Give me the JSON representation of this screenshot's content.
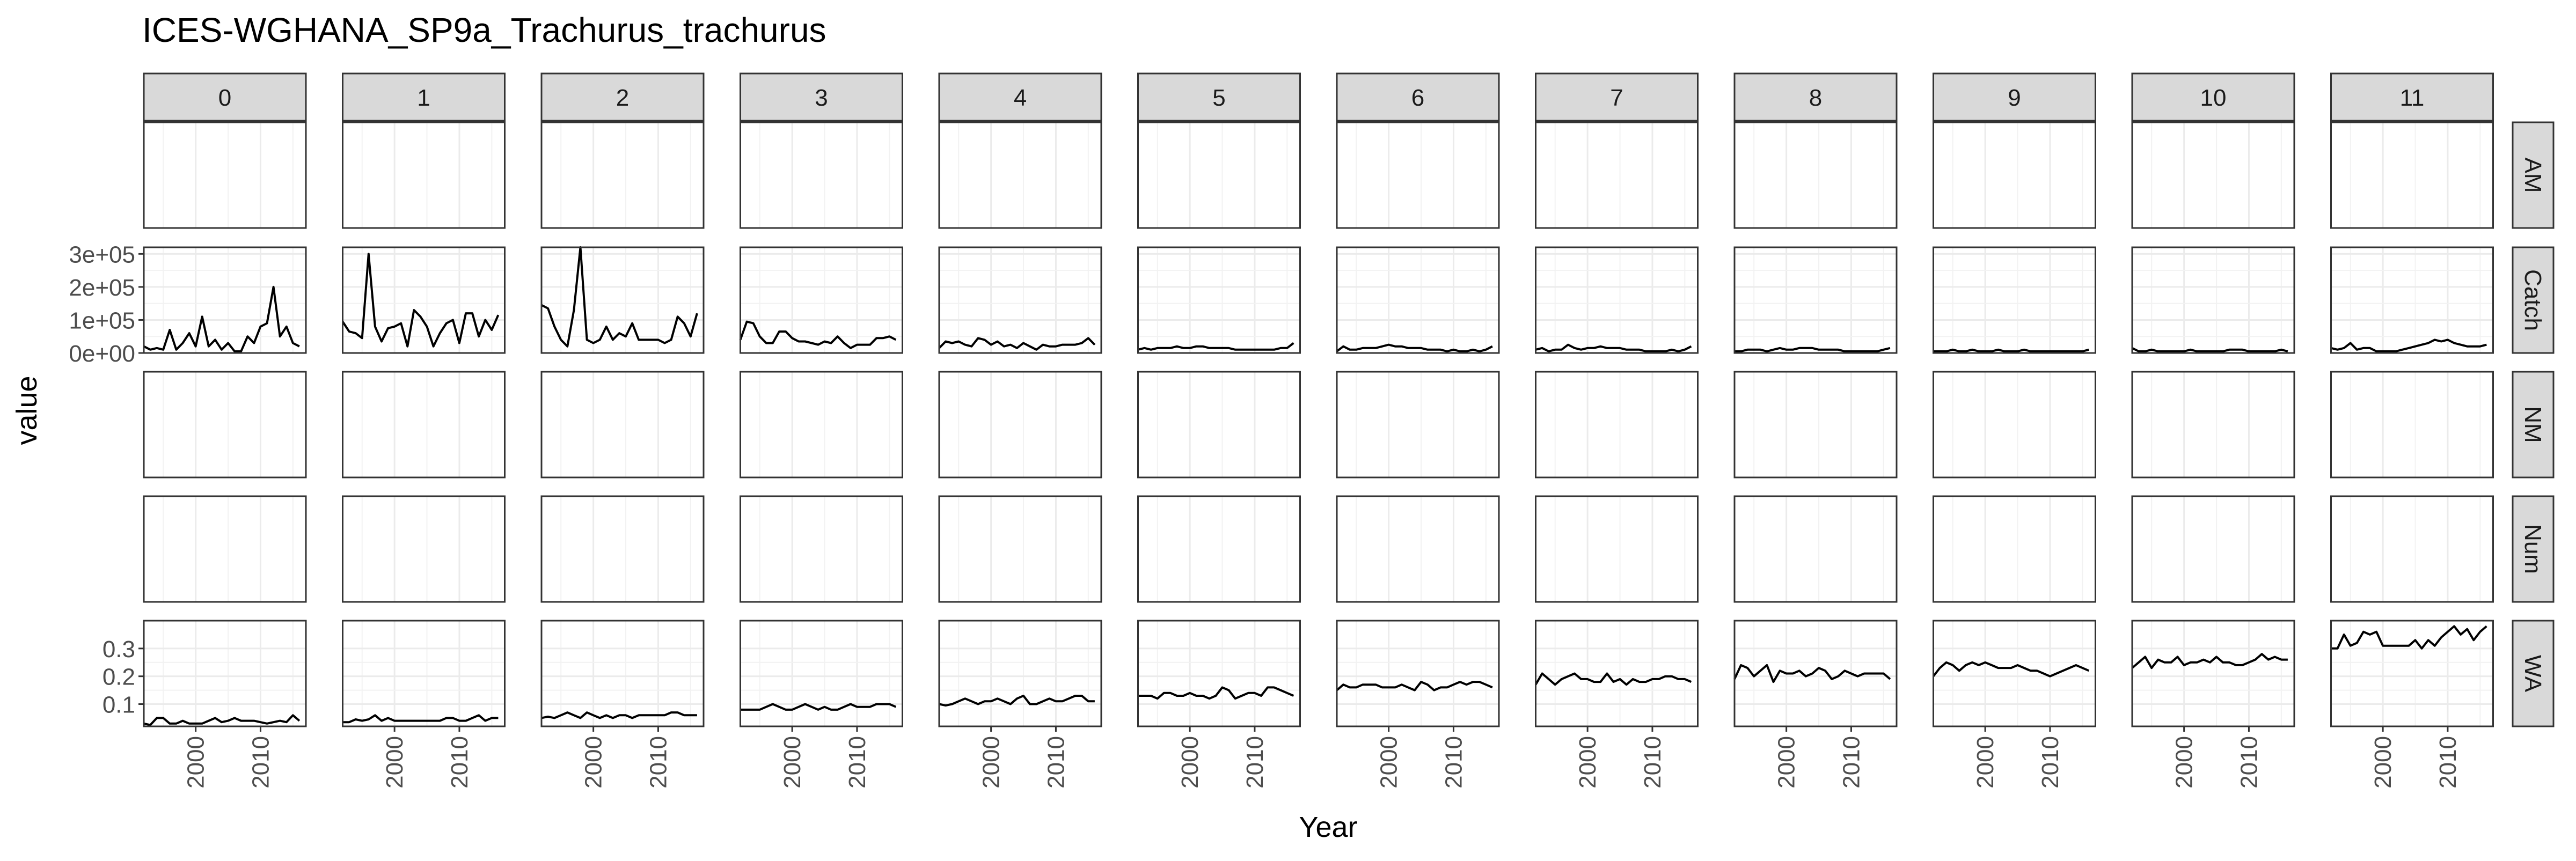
{
  "chart_data": {
    "type": "line",
    "title": "ICES-WGHANA_SP9a_Trachurus_trachurus",
    "xlabel": "Year",
    "ylabel": "value",
    "column_facets": [
      "0",
      "1",
      "2",
      "3",
      "4",
      "5",
      "6",
      "7",
      "8",
      "9",
      "10",
      "11"
    ],
    "row_facets": [
      "AM",
      "Catch",
      "NM",
      "Num",
      "WA"
    ],
    "x_ticks": [
      "2000",
      "2010"
    ],
    "xlim": [
      1992,
      2017
    ],
    "y_scales": {
      "Catch": {
        "ylim": [
          0,
          320000
        ],
        "ticks": [
          0,
          100000,
          200000,
          300000
        ],
        "tick_labels": [
          "0e+00",
          "1e+05",
          "2e+05",
          "3e+05"
        ]
      },
      "WA": {
        "ylim": [
          0.02,
          0.4
        ],
        "ticks": [
          0.1,
          0.2,
          0.3
        ],
        "tick_labels": [
          "0.1",
          "0.2",
          "0.3"
        ]
      }
    },
    "grid": true,
    "x": [
      1992,
      1993,
      1994,
      1995,
      1996,
      1997,
      1998,
      1999,
      2000,
      2001,
      2002,
      2003,
      2004,
      2005,
      2006,
      2007,
      2008,
      2009,
      2010,
      2011,
      2012,
      2013,
      2014,
      2015,
      2016
    ],
    "series": {
      "Catch": [
        [
          20000,
          10000,
          15000,
          10000,
          70000,
          10000,
          30000,
          60000,
          20000,
          110000,
          20000,
          40000,
          10000,
          30000,
          5000,
          5000,
          50000,
          30000,
          80000,
          90000,
          200000,
          50000,
          80000,
          30000,
          20000
        ],
        [
          95000,
          65000,
          60000,
          45000,
          300000,
          80000,
          35000,
          75000,
          80000,
          90000,
          20000,
          130000,
          110000,
          80000,
          20000,
          60000,
          90000,
          100000,
          30000,
          120000,
          120000,
          50000,
          100000,
          70000,
          115000
        ],
        [
          145000,
          135000,
          80000,
          40000,
          20000,
          130000,
          320000,
          40000,
          30000,
          40000,
          80000,
          40000,
          60000,
          50000,
          90000,
          40000,
          40000,
          40000,
          40000,
          30000,
          40000,
          110000,
          90000,
          50000,
          120000
        ],
        [
          40000,
          95000,
          90000,
          50000,
          30000,
          30000,
          65000,
          65000,
          45000,
          35000,
          35000,
          30000,
          25000,
          35000,
          30000,
          50000,
          30000,
          15000,
          25000,
          25000,
          25000,
          45000,
          45000,
          50000,
          40000
        ],
        [
          15000,
          35000,
          30000,
          35000,
          25000,
          20000,
          45000,
          40000,
          25000,
          35000,
          20000,
          25000,
          15000,
          30000,
          20000,
          10000,
          25000,
          20000,
          20000,
          25000,
          25000,
          25000,
          30000,
          45000,
          25000
        ],
        [
          10000,
          15000,
          10000,
          15000,
          15000,
          15000,
          20000,
          15000,
          15000,
          20000,
          20000,
          15000,
          15000,
          15000,
          15000,
          10000,
          10000,
          10000,
          10000,
          10000,
          10000,
          10000,
          15000,
          15000,
          30000
        ],
        [
          5000,
          20000,
          10000,
          10000,
          15000,
          15000,
          15000,
          20000,
          25000,
          20000,
          20000,
          15000,
          15000,
          15000,
          10000,
          10000,
          10000,
          5000,
          10000,
          5000,
          5000,
          10000,
          5000,
          10000,
          20000
        ],
        [
          10000,
          15000,
          5000,
          10000,
          10000,
          25000,
          15000,
          10000,
          15000,
          15000,
          20000,
          15000,
          15000,
          15000,
          10000,
          10000,
          10000,
          5000,
          5000,
          5000,
          5000,
          10000,
          5000,
          10000,
          20000
        ],
        [
          5000,
          5000,
          10000,
          10000,
          10000,
          5000,
          10000,
          15000,
          10000,
          10000,
          15000,
          15000,
          15000,
          10000,
          10000,
          10000,
          10000,
          5000,
          5000,
          5000,
          5000,
          5000,
          5000,
          10000,
          15000
        ],
        [
          5000,
          5000,
          5000,
          10000,
          5000,
          5000,
          10000,
          5000,
          5000,
          5000,
          10000,
          5000,
          5000,
          5000,
          10000,
          5000,
          5000,
          5000,
          5000,
          5000,
          5000,
          5000,
          5000,
          5000,
          10000
        ],
        [
          15000,
          5000,
          5000,
          10000,
          5000,
          5000,
          5000,
          5000,
          5000,
          10000,
          5000,
          5000,
          5000,
          5000,
          5000,
          10000,
          10000,
          10000,
          5000,
          5000,
          5000,
          5000,
          5000,
          10000,
          5000
        ],
        [
          15000,
          10000,
          15000,
          30000,
          10000,
          15000,
          15000,
          5000,
          5000,
          5000,
          5000,
          10000,
          15000,
          20000,
          25000,
          30000,
          40000,
          35000,
          40000,
          30000,
          25000,
          20000,
          20000,
          20000,
          25000
        ]
      ],
      "WA": [
        [
          0.03,
          0.025,
          0.05,
          0.05,
          0.03,
          0.03,
          0.04,
          0.03,
          0.03,
          0.03,
          0.04,
          0.05,
          0.035,
          0.04,
          0.05,
          0.04,
          0.04,
          0.04,
          0.035,
          0.03,
          0.035,
          0.04,
          0.035,
          0.06,
          0.04
        ],
        [
          0.035,
          0.035,
          0.045,
          0.04,
          0.045,
          0.06,
          0.04,
          0.05,
          0.04,
          0.04,
          0.04,
          0.04,
          0.04,
          0.04,
          0.04,
          0.04,
          0.05,
          0.05,
          0.04,
          0.04,
          0.05,
          0.06,
          0.04,
          0.05,
          0.05
        ],
        [
          0.05,
          0.055,
          0.05,
          0.06,
          0.07,
          0.06,
          0.05,
          0.07,
          0.06,
          0.05,
          0.06,
          0.05,
          0.06,
          0.06,
          0.05,
          0.06,
          0.06,
          0.06,
          0.06,
          0.06,
          0.07,
          0.07,
          0.06,
          0.06,
          0.06
        ],
        [
          0.08,
          0.08,
          0.08,
          0.08,
          0.09,
          0.1,
          0.09,
          0.08,
          0.08,
          0.09,
          0.1,
          0.09,
          0.08,
          0.09,
          0.08,
          0.08,
          0.09,
          0.1,
          0.09,
          0.09,
          0.09,
          0.1,
          0.1,
          0.1,
          0.09
        ],
        [
          0.1,
          0.095,
          0.1,
          0.11,
          0.12,
          0.11,
          0.1,
          0.11,
          0.11,
          0.12,
          0.11,
          0.1,
          0.12,
          0.13,
          0.1,
          0.1,
          0.11,
          0.12,
          0.11,
          0.11,
          0.12,
          0.13,
          0.13,
          0.11,
          0.11
        ],
        [
          0.13,
          0.13,
          0.13,
          0.12,
          0.14,
          0.14,
          0.13,
          0.13,
          0.14,
          0.13,
          0.13,
          0.12,
          0.13,
          0.16,
          0.15,
          0.12,
          0.13,
          0.14,
          0.14,
          0.13,
          0.16,
          0.16,
          0.15,
          0.14,
          0.13
        ],
        [
          0.15,
          0.17,
          0.16,
          0.16,
          0.17,
          0.17,
          0.17,
          0.16,
          0.16,
          0.16,
          0.17,
          0.16,
          0.15,
          0.18,
          0.17,
          0.15,
          0.16,
          0.16,
          0.17,
          0.18,
          0.17,
          0.18,
          0.18,
          0.17,
          0.16
        ],
        [
          0.17,
          0.21,
          0.19,
          0.17,
          0.19,
          0.2,
          0.21,
          0.19,
          0.19,
          0.18,
          0.18,
          0.21,
          0.18,
          0.19,
          0.17,
          0.19,
          0.18,
          0.18,
          0.19,
          0.19,
          0.2,
          0.2,
          0.19,
          0.19,
          0.18
        ],
        [
          0.19,
          0.24,
          0.23,
          0.2,
          0.22,
          0.24,
          0.18,
          0.22,
          0.21,
          0.21,
          0.22,
          0.2,
          0.21,
          0.23,
          0.22,
          0.19,
          0.2,
          0.22,
          0.21,
          0.2,
          0.21,
          0.21,
          0.21,
          0.21,
          0.19
        ],
        [
          0.2,
          0.23,
          0.25,
          0.24,
          0.22,
          0.24,
          0.25,
          0.24,
          0.25,
          0.24,
          0.23,
          0.23,
          0.23,
          0.24,
          0.23,
          0.22,
          0.22,
          0.21,
          0.2,
          0.21,
          0.22,
          0.23,
          0.24,
          0.23,
          0.22
        ],
        [
          0.23,
          0.25,
          0.27,
          0.23,
          0.26,
          0.25,
          0.25,
          0.27,
          0.24,
          0.25,
          0.25,
          0.26,
          0.25,
          0.27,
          0.25,
          0.25,
          0.24,
          0.24,
          0.25,
          0.26,
          0.28,
          0.26,
          0.27,
          0.26,
          0.26
        ],
        [
          0.3,
          0.3,
          0.35,
          0.31,
          0.32,
          0.36,
          0.35,
          0.36,
          0.31,
          0.31,
          0.31,
          0.31,
          0.31,
          0.33,
          0.3,
          0.33,
          0.31,
          0.34,
          0.36,
          0.38,
          0.35,
          0.37,
          0.33,
          0.36,
          0.38
        ]
      ]
    },
    "colors": {
      "line": "#000000",
      "strip_fill": "#d9d9d9",
      "panel_border": "#333333",
      "grid": "#ebebeb"
    }
  }
}
